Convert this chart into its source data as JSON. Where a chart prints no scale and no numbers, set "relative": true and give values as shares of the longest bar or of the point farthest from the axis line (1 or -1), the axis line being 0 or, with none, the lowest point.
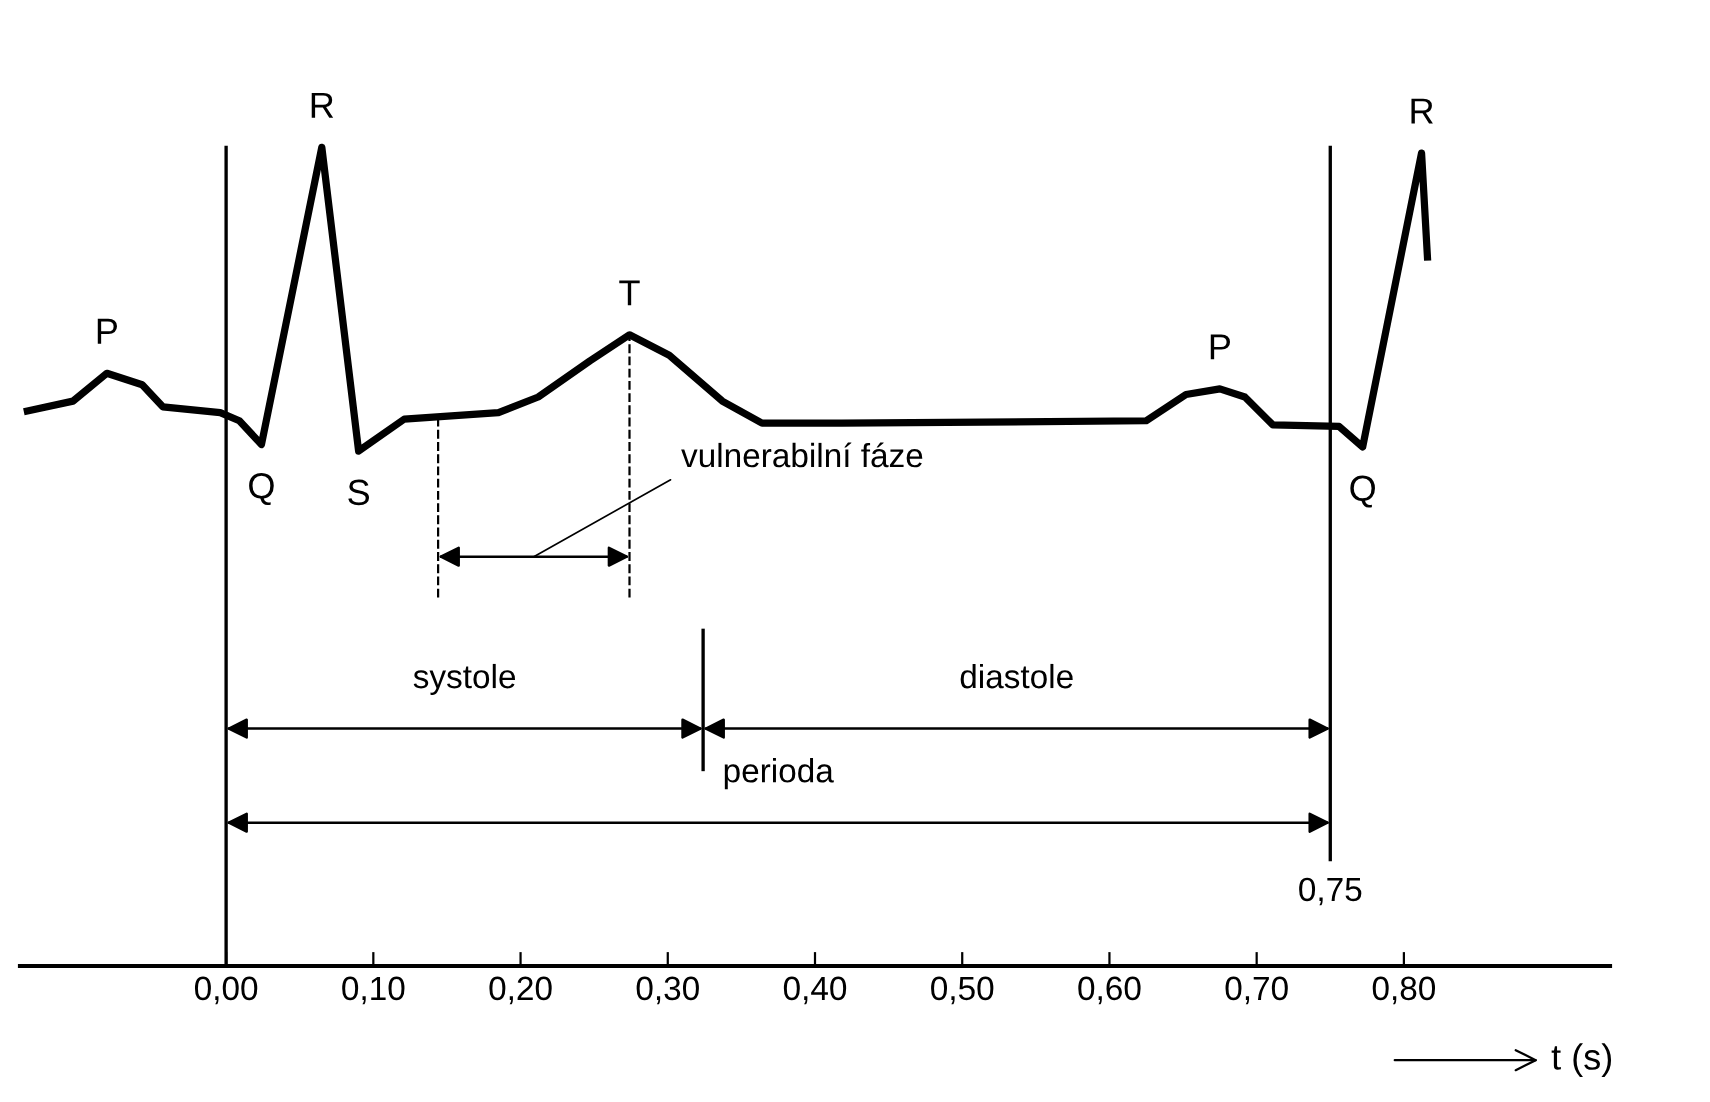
{
  "chart_data": {
    "type": "line",
    "relative": true,
    "xlabel": "t (s)",
    "x": [
      -0.135,
      -0.104,
      -0.081,
      -0.057,
      -0.043,
      -0.004,
      0.009,
      0.024,
      0.065,
      0.09,
      0.121,
      0.185,
      0.212,
      0.247,
      0.274,
      0.301,
      0.337,
      0.364,
      0.418,
      0.625,
      0.652,
      0.675,
      0.692,
      0.711,
      0.756,
      0.772,
      0.812,
      0.816
    ],
    "series": [
      {
        "color": "#000000",
        "values": [
          0.678,
          0.69,
          0.724,
          0.71,
          0.683,
          0.676,
          0.666,
          0.637,
          1.0,
          0.629,
          0.668,
          0.676,
          0.695,
          0.739,
          0.771,
          0.746,
          0.69,
          0.663,
          0.663,
          0.666,
          0.698,
          0.705,
          0.695,
          0.661,
          0.659,
          0.634,
          0.993,
          0.866
        ]
      }
    ],
    "xlim": [
      -0.14,
      0.94
    ],
    "xticks": [
      {
        "value": 0,
        "label": "0,00"
      },
      {
        "value": 0.1,
        "label": "0,10"
      },
      {
        "value": 0.2,
        "label": "0,20"
      },
      {
        "value": 0.3,
        "label": "0,30"
      },
      {
        "value": 0.4,
        "label": "0,40"
      },
      {
        "value": 0.5,
        "label": "0,50"
      },
      {
        "value": 0.6,
        "label": "0,60"
      },
      {
        "value": 0.7,
        "label": "0,70"
      },
      {
        "value": 0.8,
        "label": "0,80"
      }
    ],
    "ref_lines": [
      {
        "axis": "x",
        "value": 0,
        "label": null,
        "color": "#000000",
        "line_style": "solid"
      },
      {
        "axis": "x",
        "value": 0.75,
        "label": "0,75",
        "color": "#000000",
        "line_style": "solid"
      },
      {
        "axis": "x",
        "value": 0.144,
        "label": null,
        "color": "#000000",
        "line_style": "dashed"
      },
      {
        "axis": "x",
        "value": 0.274,
        "label": null,
        "color": "#000000",
        "line_style": "dashed"
      },
      {
        "axis": "x",
        "value": 0.324,
        "label": null,
        "color": "#000000",
        "line_style": "solid"
      }
    ],
    "annotations": [
      {
        "text": "P",
        "x": -0.081,
        "y": 0.724
      },
      {
        "text": "Q",
        "x": 0.024,
        "y": 0.637
      },
      {
        "text": "R",
        "x": 0.065,
        "y": 1.0
      },
      {
        "text": "S",
        "x": 0.09,
        "y": 0.629
      },
      {
        "text": "T",
        "x": 0.274,
        "y": 0.771
      },
      {
        "text": "P",
        "x": 0.675,
        "y": 0.705
      },
      {
        "text": "Q",
        "x": 0.772,
        "y": 0.634
      },
      {
        "text": "R",
        "x": 0.812,
        "y": 0.993
      },
      "vulnerabilní fáze",
      "systole",
      "diastole",
      "perioda"
    ],
    "grid": false,
    "marker": "none",
    "line_style": "solid"
  }
}
